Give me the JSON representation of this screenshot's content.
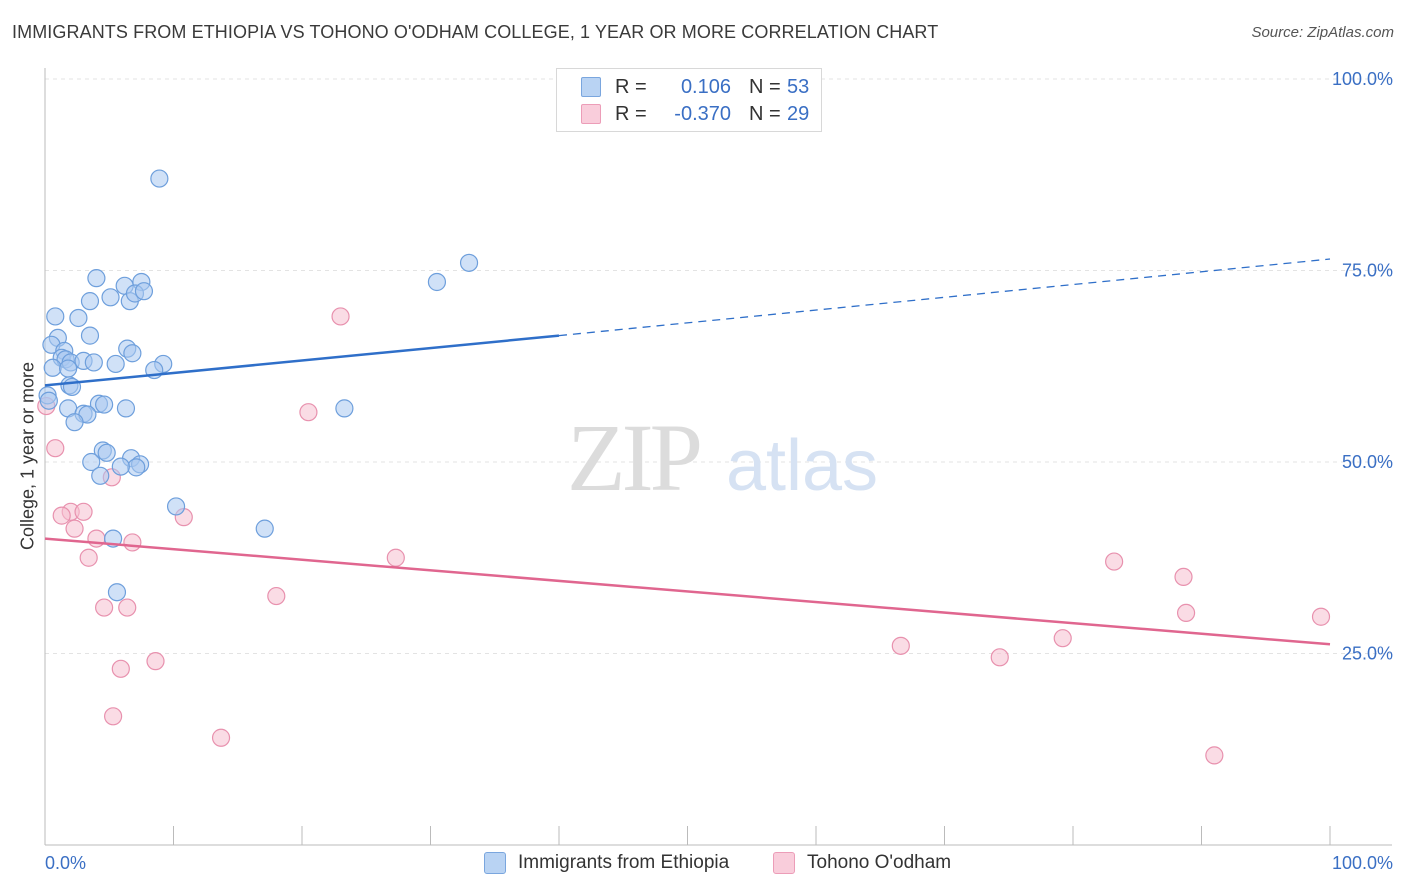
{
  "title": "IMMIGRANTS FROM ETHIOPIA VS TOHONO O'ODHAM COLLEGE, 1 YEAR OR MORE CORRELATION CHART",
  "source": "Source: ZipAtlas.com",
  "watermark": {
    "zip": "ZIP",
    "atlas": "atlas"
  },
  "legend": {
    "r_label": "R =",
    "n_label": "N =",
    "series1": {
      "r": "0.106",
      "n": "53"
    },
    "series2": {
      "r": "-0.370",
      "n": "29"
    }
  },
  "colors": {
    "blue_fill": "#a9c8f0",
    "blue_stroke": "#6e9fdc",
    "blue_line": "#2f6fc9",
    "pink_fill": "#f6bfd0",
    "pink_stroke": "#e891ae",
    "pink_line": "#e0668f",
    "axis_text": "#3a6fc4"
  },
  "chart_data": {
    "type": "scatter",
    "title": "IMMIGRANTS FROM ETHIOPIA VS TOHONO O'ODHAM COLLEGE, 1 YEAR OR MORE CORRELATION CHART",
    "xlabel": "",
    "ylabel": "College, 1 year or more",
    "xlim": [
      0,
      100
    ],
    "ylim": [
      0,
      100
    ],
    "x_tick_labels": [
      "0.0%",
      "100.0%"
    ],
    "y_ticks": [
      25,
      50,
      75,
      100
    ],
    "y_tick_labels": [
      "25.0%",
      "50.0%",
      "75.0%",
      "100.0%"
    ],
    "series": [
      {
        "name": "Immigrants from Ethiopia",
        "r": 0.106,
        "n": 53,
        "trend": {
          "x0": 0,
          "y0": 60.0,
          "x1": 40,
          "y1": 66.5,
          "dashed_to_x": 100,
          "dashed_to_y": 76.5
        },
        "points": [
          [
            8.9,
            87.0
          ],
          [
            33,
            76.0
          ],
          [
            30.5,
            73.5
          ],
          [
            4.0,
            74.0
          ],
          [
            6.2,
            73.0
          ],
          [
            7.5,
            73.5
          ],
          [
            3.5,
            71.0
          ],
          [
            5.1,
            71.5
          ],
          [
            6.6,
            71.0
          ],
          [
            7.0,
            72.0
          ],
          [
            7.7,
            72.3
          ],
          [
            0.8,
            69.0
          ],
          [
            2.6,
            68.8
          ],
          [
            3.5,
            66.5
          ],
          [
            1.0,
            66.2
          ],
          [
            0.5,
            65.3
          ],
          [
            1.5,
            64.5
          ],
          [
            6.4,
            64.8
          ],
          [
            6.8,
            64.2
          ],
          [
            1.3,
            63.6
          ],
          [
            1.6,
            63.4
          ],
          [
            2.0,
            63.0
          ],
          [
            3.0,
            63.2
          ],
          [
            3.8,
            63.0
          ],
          [
            5.5,
            62.8
          ],
          [
            9.2,
            62.8
          ],
          [
            8.5,
            62.0
          ],
          [
            0.6,
            62.3
          ],
          [
            1.8,
            62.2
          ],
          [
            1.9,
            60.0
          ],
          [
            2.1,
            59.8
          ],
          [
            0.2,
            58.7
          ],
          [
            0.3,
            58.0
          ],
          [
            4.2,
            57.6
          ],
          [
            4.6,
            57.5
          ],
          [
            1.8,
            57.0
          ],
          [
            6.3,
            57.0
          ],
          [
            23.3,
            57.0
          ],
          [
            3.0,
            56.3
          ],
          [
            3.3,
            56.2
          ],
          [
            2.3,
            55.2
          ],
          [
            4.5,
            51.5
          ],
          [
            4.8,
            51.2
          ],
          [
            6.7,
            50.5
          ],
          [
            3.6,
            50.0
          ],
          [
            7.4,
            49.7
          ],
          [
            7.1,
            49.3
          ],
          [
            5.9,
            49.4
          ],
          [
            4.3,
            48.2
          ],
          [
            10.2,
            44.2
          ],
          [
            17.1,
            41.3
          ],
          [
            5.3,
            40.0
          ],
          [
            5.6,
            33.0
          ]
        ]
      },
      {
        "name": "Tohono O'odham",
        "r": -0.37,
        "n": 29,
        "trend": {
          "x0": 0,
          "y0": 40.0,
          "x1": 100,
          "y1": 26.2
        },
        "points": [
          [
            23.0,
            69.0
          ],
          [
            0.1,
            57.3
          ],
          [
            20.5,
            56.5
          ],
          [
            0.8,
            51.8
          ],
          [
            5.2,
            48.0
          ],
          [
            2.0,
            43.5
          ],
          [
            3.0,
            43.5
          ],
          [
            1.3,
            43.0
          ],
          [
            10.8,
            42.8
          ],
          [
            2.3,
            41.3
          ],
          [
            4.0,
            40.0
          ],
          [
            6.8,
            39.5
          ],
          [
            3.4,
            37.5
          ],
          [
            27.3,
            37.5
          ],
          [
            83.2,
            37.0
          ],
          [
            88.6,
            35.0
          ],
          [
            18.0,
            32.5
          ],
          [
            4.6,
            31.0
          ],
          [
            6.4,
            31.0
          ],
          [
            88.8,
            30.3
          ],
          [
            99.3,
            29.8
          ],
          [
            79.2,
            27.0
          ],
          [
            66.6,
            26.0
          ],
          [
            74.3,
            24.5
          ],
          [
            8.6,
            24.0
          ],
          [
            5.9,
            23.0
          ],
          [
            5.3,
            16.8
          ],
          [
            13.7,
            14.0
          ],
          [
            91.0,
            11.7
          ]
        ]
      }
    ]
  }
}
